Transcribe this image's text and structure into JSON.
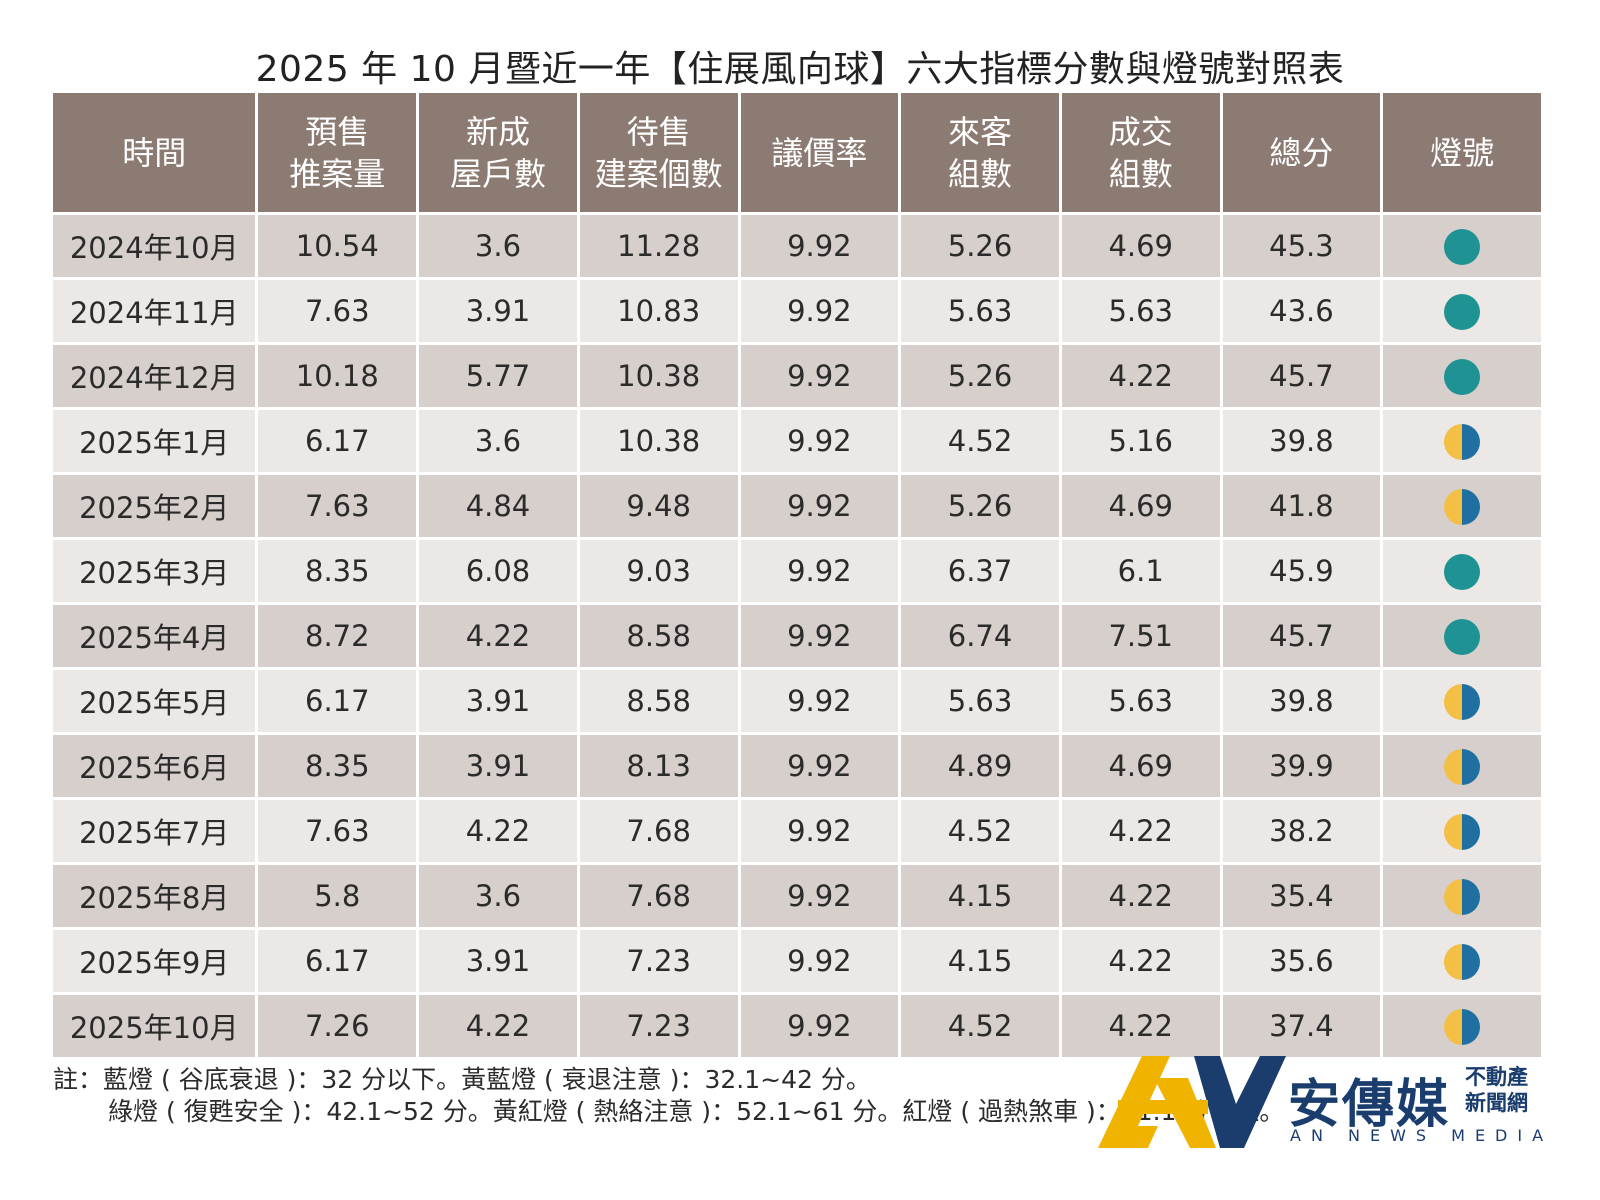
{
  "title": "2025 年 10 月暨近一年【住展風向球】六大指標分數與燈號對照表",
  "headers": [
    [
      "時間"
    ],
    [
      "預售",
      "推案量"
    ],
    [
      "新成",
      "屋戶數"
    ],
    [
      "待售",
      "建案個數"
    ],
    [
      "議價率"
    ],
    [
      "來客",
      "組數"
    ],
    [
      "成交",
      "組數"
    ],
    [
      "總分"
    ],
    [
      "燈號"
    ]
  ],
  "rows": [
    {
      "cells": [
        "2024年10月",
        "10.54",
        "3.6",
        "11.28",
        "9.92",
        "5.26",
        "4.69",
        "45.3"
      ],
      "lamp": "green"
    },
    {
      "cells": [
        "2024年11月",
        "7.63",
        "3.91",
        "10.83",
        "9.92",
        "5.63",
        "5.63",
        "43.6"
      ],
      "lamp": "green"
    },
    {
      "cells": [
        "2024年12月",
        "10.18",
        "5.77",
        "10.38",
        "9.92",
        "5.26",
        "4.22",
        "45.7"
      ],
      "lamp": "green"
    },
    {
      "cells": [
        "2025年1月",
        "6.17",
        "3.6",
        "10.38",
        "9.92",
        "4.52",
        "5.16",
        "39.8"
      ],
      "lamp": "yellow-blue"
    },
    {
      "cells": [
        "2025年2月",
        "7.63",
        "4.84",
        "9.48",
        "9.92",
        "5.26",
        "4.69",
        "41.8"
      ],
      "lamp": "yellow-blue"
    },
    {
      "cells": [
        "2025年3月",
        "8.35",
        "6.08",
        "9.03",
        "9.92",
        "6.37",
        "6.1",
        "45.9"
      ],
      "lamp": "green"
    },
    {
      "cells": [
        "2025年4月",
        "8.72",
        "4.22",
        "8.58",
        "9.92",
        "6.74",
        "7.51",
        "45.7"
      ],
      "lamp": "green"
    },
    {
      "cells": [
        "2025年5月",
        "6.17",
        "3.91",
        "8.58",
        "9.92",
        "5.63",
        "5.63",
        "39.8"
      ],
      "lamp": "yellow-blue"
    },
    {
      "cells": [
        "2025年6月",
        "8.35",
        "3.91",
        "8.13",
        "9.92",
        "4.89",
        "4.69",
        "39.9"
      ],
      "lamp": "yellow-blue"
    },
    {
      "cells": [
        "2025年7月",
        "7.63",
        "4.22",
        "7.68",
        "9.92",
        "4.52",
        "4.22",
        "38.2"
      ],
      "lamp": "yellow-blue"
    },
    {
      "cells": [
        "2025年8月",
        "5.8",
        "3.6",
        "7.68",
        "9.92",
        "4.15",
        "4.22",
        "35.4"
      ],
      "lamp": "yellow-blue"
    },
    {
      "cells": [
        "2025年9月",
        "6.17",
        "3.91",
        "7.23",
        "9.92",
        "4.15",
        "4.22",
        "35.6"
      ],
      "lamp": "yellow-blue"
    },
    {
      "cells": [
        "2025年10月",
        "7.26",
        "4.22",
        "7.23",
        "9.92",
        "4.52",
        "4.22",
        "37.4"
      ],
      "lamp": "yellow-blue"
    }
  ],
  "lamp_colors": {
    "green": "#1f9293",
    "yellow": "#f3bf45",
    "blue": "#1f6fa0"
  },
  "header_color": "#8c7b72",
  "notes": {
    "line1": "註：藍燈 ( 谷底衰退 )：32 分以下。黃藍燈 ( 衰退注意 )：32.1~42 分。",
    "line2": "綠燈 ( 復甦安全 )：42.1~52 分。黃紅燈 ( 熱絡注意 )：52.1~61 分。紅燈 ( 過熱煞車 )：61.1 分以上。"
  },
  "logo": {
    "name": "安傳媒",
    "sub1": "不動產",
    "sub2": "新聞網",
    "english": "AN NEWS MEDIA"
  }
}
